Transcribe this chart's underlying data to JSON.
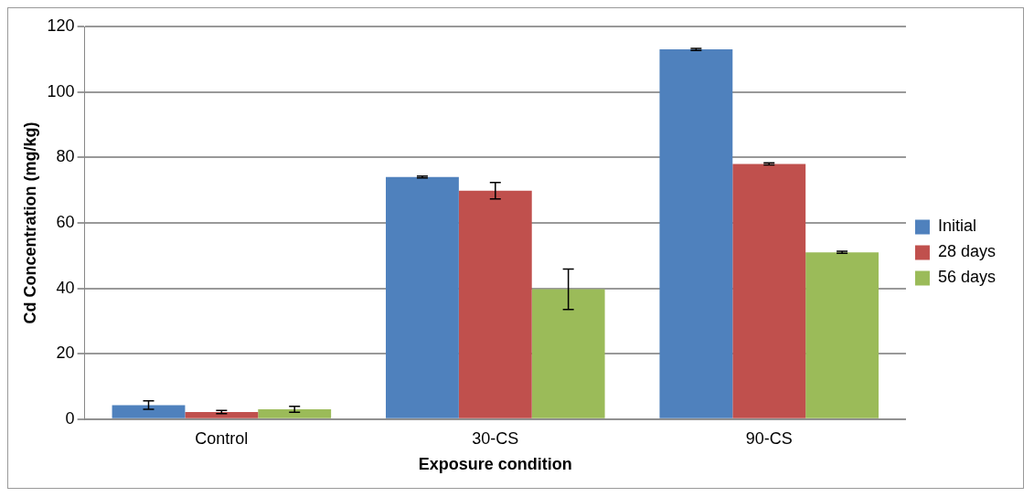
{
  "chart_data": {
    "type": "bar",
    "xlabel": "Exposure condition",
    "ylabel": "Cd Concentration (mg/kg)",
    "categories": [
      "Control",
      "30-CS",
      "90-CS"
    ],
    "series": [
      {
        "name": "Initial",
        "color": "#4f81bd",
        "values": [
          4.3,
          74,
          113
        ],
        "errors": [
          1.3,
          0.3,
          0.3
        ]
      },
      {
        "name": "28 days",
        "color": "#c0504d",
        "values": [
          2.2,
          69.8,
          78
        ],
        "errors": [
          0.5,
          2.5,
          0.3
        ]
      },
      {
        "name": "56 days",
        "color": "#9bbb59",
        "values": [
          3,
          39.7,
          51
        ],
        "errors": [
          0.9,
          6.2,
          0.3
        ]
      }
    ],
    "ylim": [
      0,
      120
    ],
    "yticks": [
      0,
      20,
      40,
      60,
      80,
      100,
      120
    ],
    "grid": "y",
    "legend": "right"
  }
}
